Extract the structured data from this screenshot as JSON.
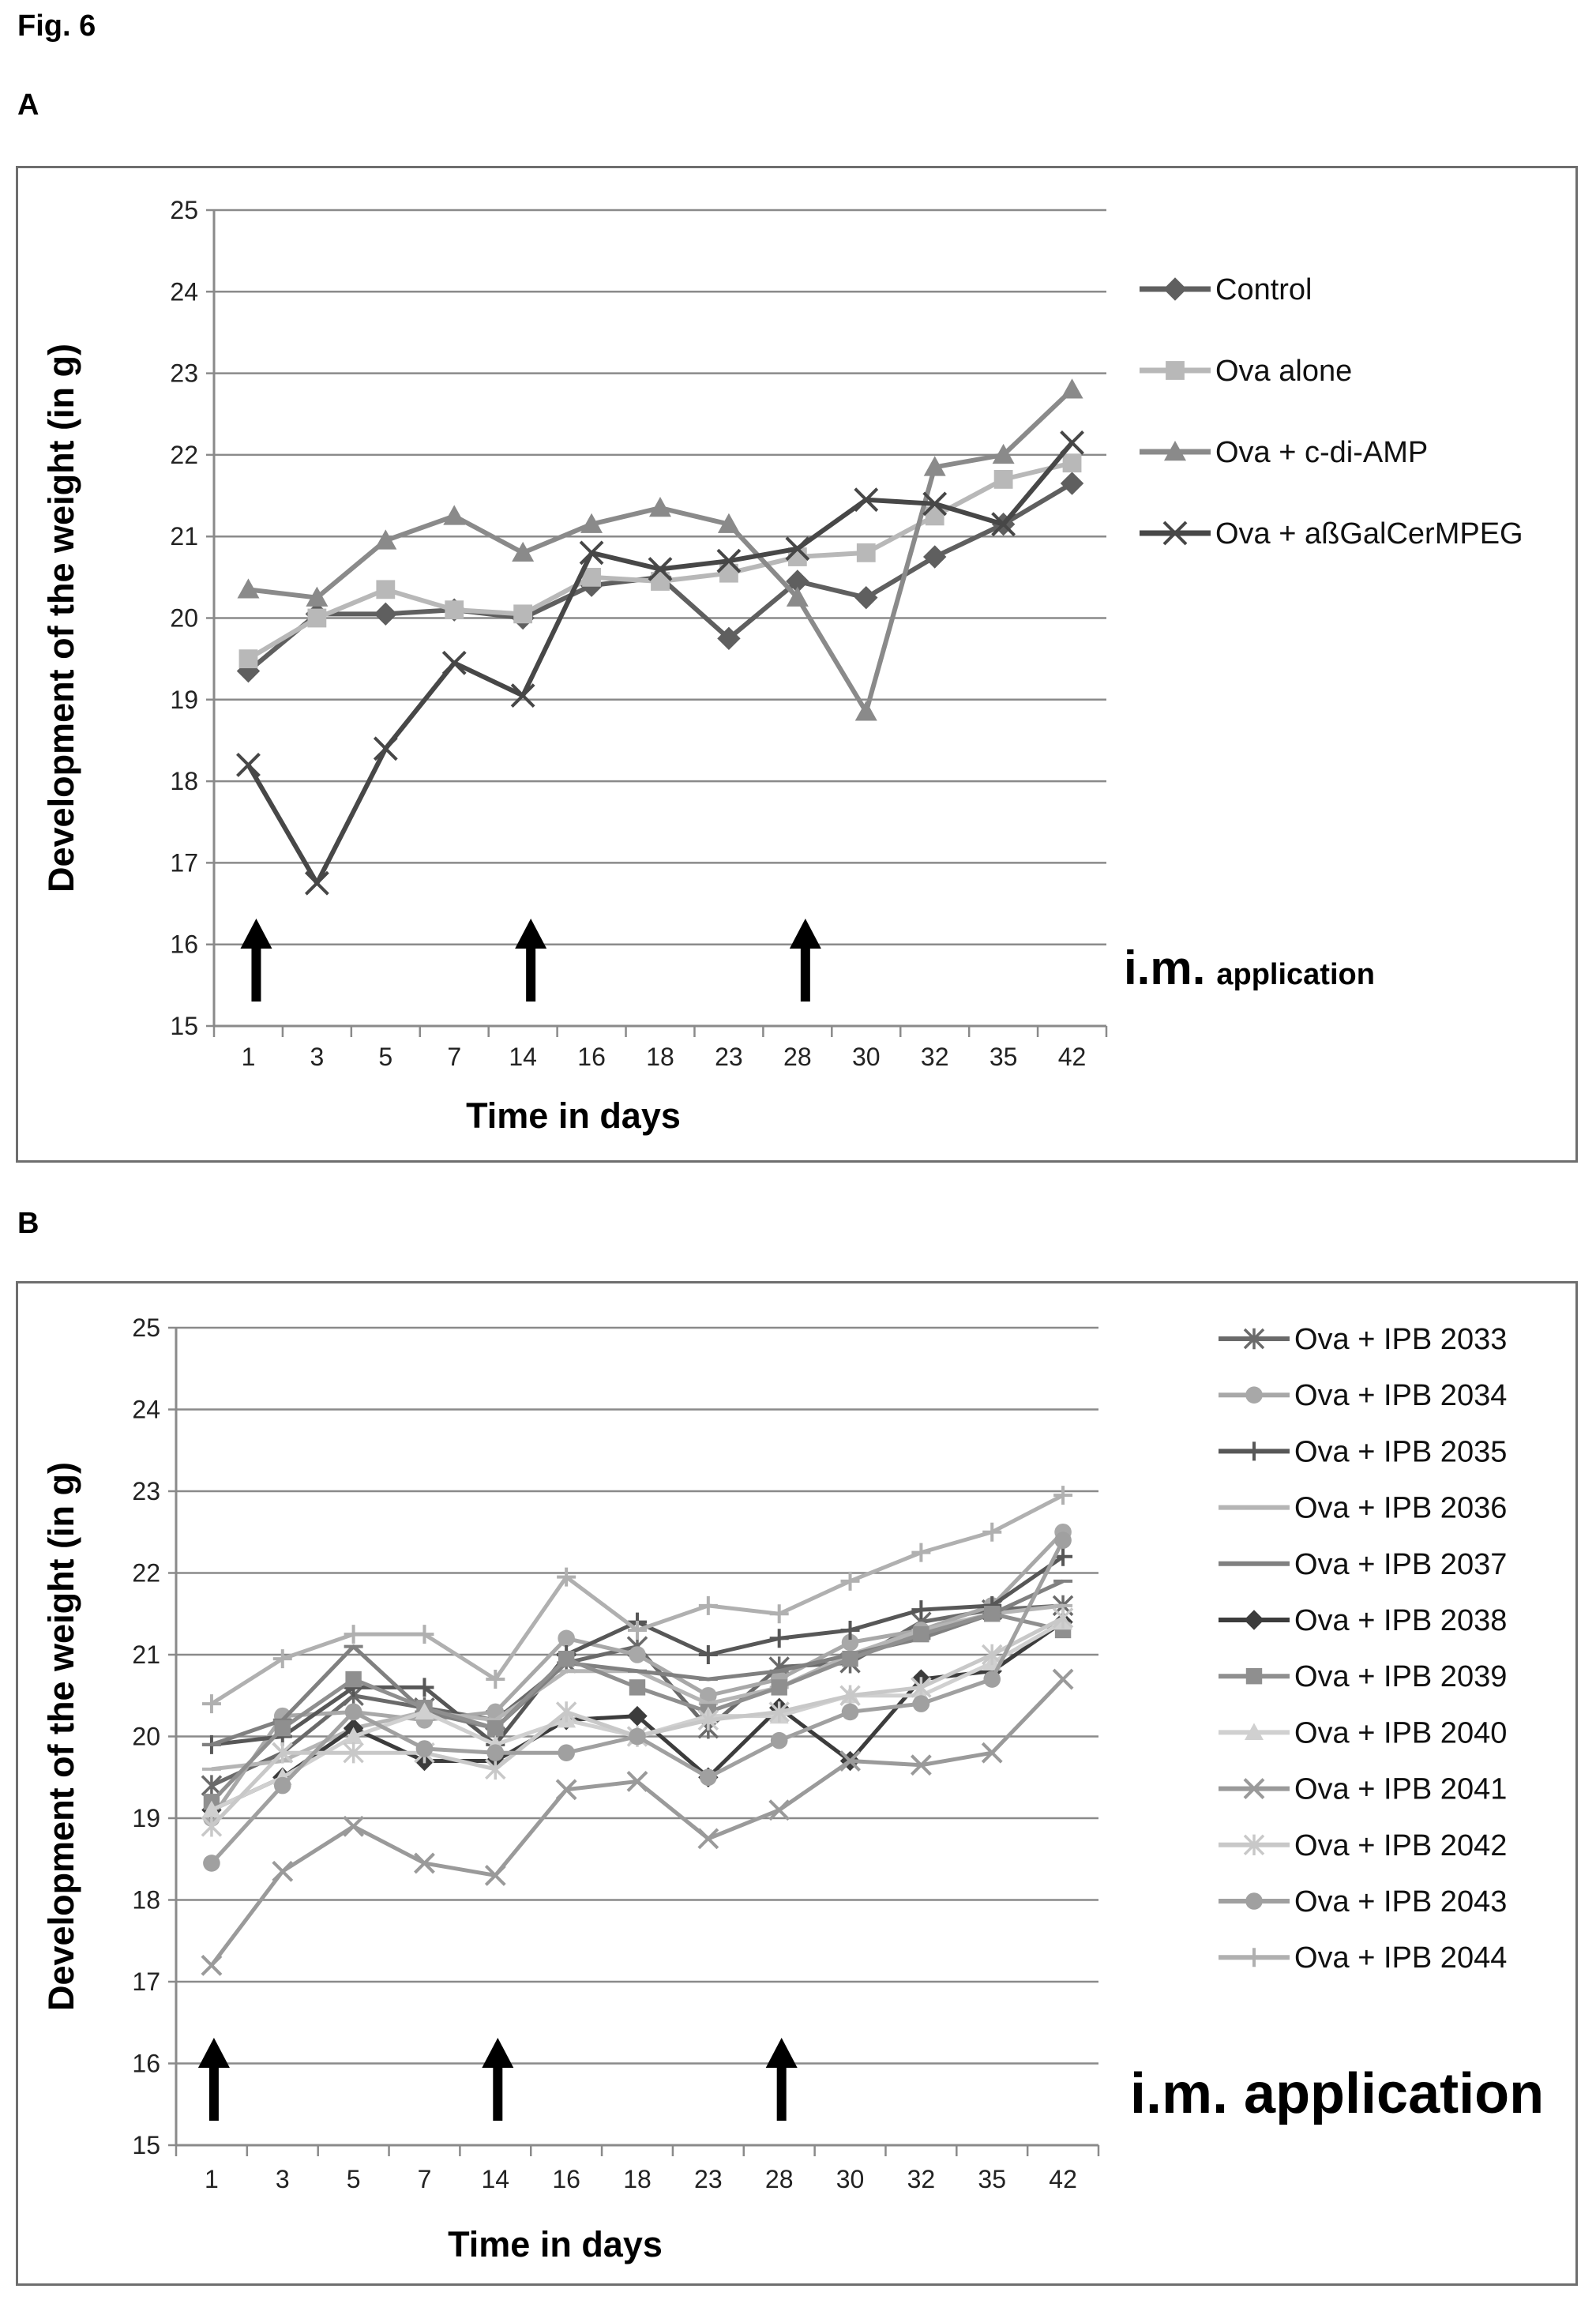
{
  "figure_label": "Fig. 6",
  "colors": {
    "gridline": "#8a8a8a",
    "arrow": "#000000",
    "frame": "#6e6e6e"
  },
  "chart_data": [
    {
      "panel": "A",
      "type": "line",
      "xlabel": "Time in days",
      "ylabel": "Development of the weight (in g)",
      "ylim": [
        15,
        25
      ],
      "yticks": [
        15,
        16,
        17,
        18,
        19,
        20,
        21,
        22,
        23,
        24,
        25
      ],
      "categories": [
        "1",
        "3",
        "5",
        "7",
        "14",
        "16",
        "18",
        "23",
        "28",
        "30",
        "32",
        "35",
        "42"
      ],
      "grid": true,
      "legend_position": "right",
      "arrows_at": [
        "1",
        "14",
        "28"
      ],
      "annotation": {
        "main": "i.m.",
        "suffix": "application"
      },
      "series": [
        {
          "name": "Control",
          "marker": "diamond",
          "color": "#5f5f5f",
          "values": [
            19.35,
            20.05,
            20.05,
            20.1,
            20.0,
            20.4,
            20.5,
            19.75,
            20.45,
            20.25,
            20.75,
            21.15,
            21.65
          ]
        },
        {
          "name": "Ova alone",
          "marker": "square",
          "color": "#b8b8b8",
          "values": [
            19.5,
            20.0,
            20.35,
            20.1,
            20.05,
            20.5,
            20.45,
            20.55,
            20.75,
            20.8,
            21.25,
            21.7,
            21.9
          ]
        },
        {
          "name": "Ova + c-di-AMP",
          "marker": "triangle",
          "color": "#8a8a8a",
          "values": [
            20.35,
            20.25,
            20.95,
            21.25,
            20.8,
            21.15,
            21.35,
            21.15,
            20.25,
            18.85,
            21.85,
            22.0,
            22.8
          ]
        },
        {
          "name": "Ova + aßGalCerMPEG",
          "marker": "x",
          "color": "#474747",
          "values": [
            18.2,
            16.75,
            18.4,
            19.45,
            19.05,
            20.8,
            20.6,
            20.7,
            20.85,
            21.45,
            21.4,
            21.15,
            22.15
          ]
        }
      ]
    },
    {
      "panel": "B",
      "type": "line",
      "xlabel": "Time in days",
      "ylabel": "Development of the weight (in g)",
      "ylim": [
        15,
        25
      ],
      "yticks": [
        15,
        16,
        17,
        18,
        19,
        20,
        21,
        22,
        23,
        24,
        25
      ],
      "categories": [
        "1",
        "3",
        "5",
        "7",
        "14",
        "16",
        "18",
        "23",
        "28",
        "30",
        "32",
        "35",
        "42"
      ],
      "grid": true,
      "legend_position": "right",
      "arrows_at": [
        "1",
        "14",
        "28"
      ],
      "annotation": {
        "main": "i.m. application",
        "suffix": ""
      },
      "series": [
        {
          "name": "Ova + IPB 2033",
          "marker": "star",
          "color": "#6a6a6a",
          "values": [
            19.4,
            19.8,
            20.5,
            20.35,
            20.2,
            20.9,
            21.1,
            20.1,
            20.85,
            20.9,
            21.4,
            21.55,
            21.6
          ]
        },
        {
          "name": "Ova + IPB 2034",
          "marker": "circle",
          "color": "#a8a8a8",
          "values": [
            19.0,
            20.25,
            20.3,
            20.2,
            20.3,
            21.2,
            21.0,
            20.5,
            20.7,
            21.15,
            21.3,
            21.6,
            22.5
          ]
        },
        {
          "name": "Ova + IPB 2035",
          "marker": "plus",
          "color": "#575757",
          "values": [
            19.9,
            20.0,
            20.6,
            20.6,
            19.9,
            21.0,
            21.4,
            21.0,
            21.2,
            21.3,
            21.55,
            21.6,
            22.2
          ]
        },
        {
          "name": "Ova + IPB 2036",
          "marker": "dash",
          "color": "#b5b5b5",
          "values": [
            19.6,
            19.7,
            20.1,
            20.3,
            20.2,
            20.8,
            20.8,
            20.4,
            20.6,
            21.0,
            21.3,
            21.5,
            21.6
          ]
        },
        {
          "name": "Ova + IPB 2037",
          "marker": "dash",
          "color": "#808080",
          "values": [
            19.9,
            20.2,
            21.1,
            20.3,
            20.1,
            20.9,
            20.8,
            20.7,
            20.8,
            21.0,
            21.2,
            21.5,
            21.9
          ]
        },
        {
          "name": "Ova + IPB 2038",
          "marker": "diamond",
          "color": "#3c3c3c",
          "values": [
            19.1,
            19.5,
            20.1,
            19.7,
            19.7,
            20.2,
            20.25,
            19.5,
            20.35,
            19.7,
            20.7,
            20.8,
            21.4
          ]
        },
        {
          "name": "Ova + IPB 2039",
          "marker": "square",
          "color": "#8f8f8f",
          "values": [
            19.2,
            20.1,
            20.7,
            20.35,
            20.1,
            20.95,
            20.6,
            20.3,
            20.6,
            20.95,
            21.25,
            21.5,
            21.3
          ]
        },
        {
          "name": "Ova + IPB 2040",
          "marker": "triangle",
          "color": "#d0d0d0",
          "values": [
            19.1,
            19.5,
            20.0,
            20.3,
            19.9,
            20.2,
            20.0,
            20.25,
            20.25,
            20.5,
            20.5,
            20.9,
            21.4
          ]
        },
        {
          "name": "Ova + IPB 2041",
          "marker": "x",
          "color": "#9a9a9a",
          "values": [
            17.2,
            18.35,
            18.9,
            18.45,
            18.3,
            19.35,
            19.45,
            18.75,
            19.1,
            19.7,
            19.65,
            19.8,
            20.7
          ]
        },
        {
          "name": "Ova + IPB 2042",
          "marker": "star",
          "color": "#c8c8c8",
          "values": [
            18.9,
            19.8,
            19.8,
            19.8,
            19.6,
            20.3,
            20.0,
            20.2,
            20.3,
            20.5,
            20.6,
            21.0,
            21.45
          ]
        },
        {
          "name": "Ova + IPB 2043",
          "marker": "circle",
          "color": "#a0a0a0",
          "values": [
            18.45,
            19.4,
            20.3,
            19.85,
            19.8,
            19.8,
            20.0,
            19.5,
            19.95,
            20.3,
            20.4,
            20.7,
            22.4
          ]
        },
        {
          "name": "Ova + IPB 2044",
          "marker": "plus",
          "color": "#b0b0b0",
          "values": [
            20.4,
            20.95,
            21.25,
            21.25,
            20.7,
            21.95,
            21.3,
            21.6,
            21.5,
            21.9,
            22.25,
            22.5,
            22.95
          ]
        }
      ]
    }
  ]
}
